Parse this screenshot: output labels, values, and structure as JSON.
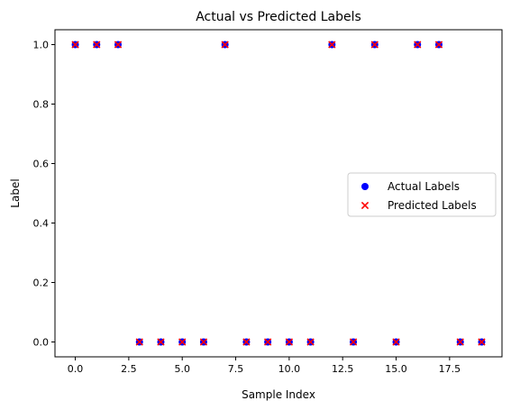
{
  "chart_data": {
    "type": "scatter",
    "title": "Actual vs Predicted Labels",
    "xlabel": "Sample Index",
    "ylabel": "Label",
    "xlim": [
      -0.95,
      19.95
    ],
    "ylim": [
      -0.05,
      1.05
    ],
    "xticks": [
      0.0,
      2.5,
      5.0,
      7.5,
      10.0,
      12.5,
      15.0,
      17.5
    ],
    "xtick_labels": [
      "0.0",
      "2.5",
      "5.0",
      "7.5",
      "10.0",
      "12.5",
      "15.0",
      "17.5"
    ],
    "yticks": [
      0.0,
      0.2,
      0.4,
      0.6,
      0.8,
      1.0
    ],
    "ytick_labels": [
      "0.0",
      "0.2",
      "0.4",
      "0.6",
      "0.8",
      "1.0"
    ],
    "grid": false,
    "legend_position": "center-right",
    "x": [
      0,
      1,
      2,
      3,
      4,
      5,
      6,
      7,
      8,
      9,
      10,
      11,
      12,
      13,
      14,
      15,
      16,
      17,
      18,
      19
    ],
    "series": [
      {
        "name": "Actual Labels",
        "marker": "circle",
        "color": "#0000ff",
        "values": [
          1,
          1,
          1,
          0,
          0,
          0,
          0,
          1,
          0,
          0,
          0,
          0,
          1,
          0,
          1,
          0,
          1,
          1,
          0,
          0
        ]
      },
      {
        "name": "Predicted Labels",
        "marker": "x",
        "color": "#ff0000",
        "values": [
          1,
          1,
          1,
          0,
          0,
          0,
          0,
          1,
          0,
          0,
          0,
          0,
          1,
          0,
          1,
          0,
          1,
          1,
          0,
          0
        ]
      }
    ]
  }
}
